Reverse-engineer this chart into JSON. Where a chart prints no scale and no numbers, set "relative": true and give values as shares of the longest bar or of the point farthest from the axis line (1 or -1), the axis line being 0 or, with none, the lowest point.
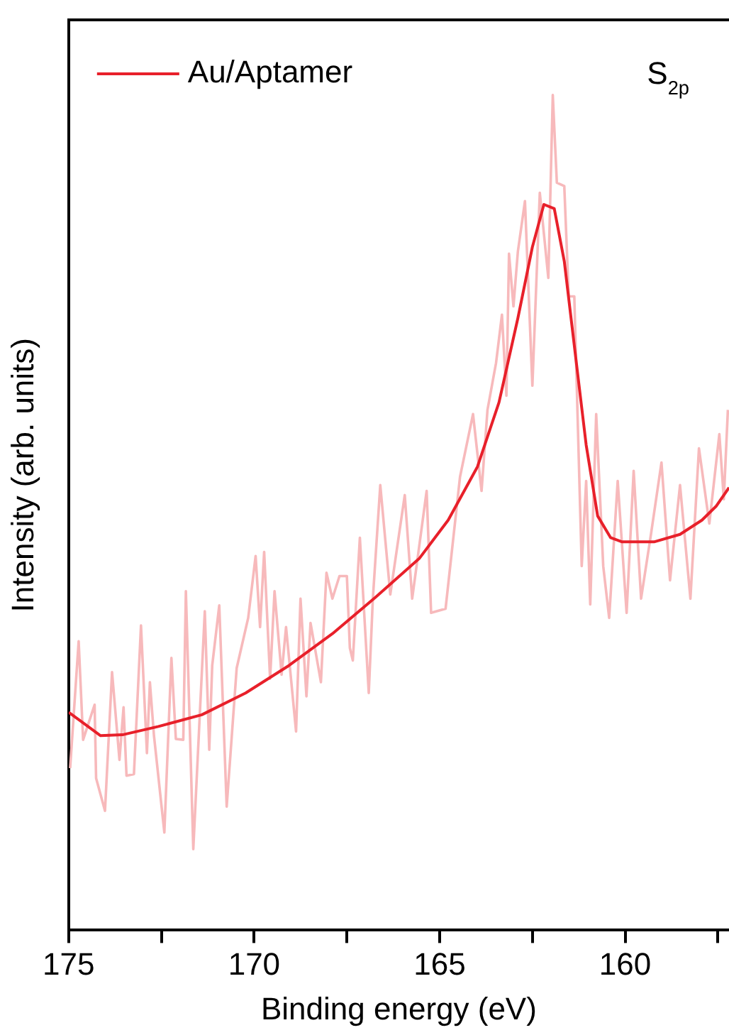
{
  "chart_data": {
    "type": "line",
    "relative": true,
    "xlabel": "Binding energy (eV)",
    "ylabel": "Intensity (arb. units)",
    "annotations": [
      "S$_{2p}$"
    ],
    "legend": "top left",
    "marker": "none",
    "line_style": "solid",
    "grid": false,
    "xlim": [
      175,
      157.2
    ],
    "xticks": [
      175,
      {
        "value": 172.5,
        "label": null
      },
      170,
      {
        "value": 167.5,
        "label": null
      },
      165,
      {
        "value": 162.5,
        "label": null
      },
      160,
      {
        "value": 157.5,
        "label": null
      }
    ],
    "series": [
      {
        "color": "#f7b9bb",
        "x": [
          174.96,
          174.73,
          174.61,
          174.3,
          174.26,
          174.02,
          173.83,
          173.63,
          173.52,
          173.44,
          173.24,
          173.05,
          172.89,
          172.81,
          172.7,
          172.42,
          172.23,
          172.11,
          171.91,
          171.84,
          171.64,
          171.33,
          171.21,
          171.13,
          170.94,
          170.74,
          170.47,
          170.16,
          169.96,
          169.84,
          169.73,
          169.57,
          169.45,
          169.26,
          169.14,
          168.87,
          168.75,
          168.59,
          168.48,
          168.2,
          168.05,
          167.89,
          167.7,
          167.5,
          167.42,
          167.34,
          167.15,
          166.91,
          166.8,
          166.6,
          166.33,
          165.94,
          165.74,
          165.35,
          165.23,
          164.84,
          164.45,
          164.1,
          163.87,
          163.71,
          163.48,
          163.32,
          163.2,
          163.13,
          163.01,
          162.89,
          162.7,
          162.5,
          162.3,
          162.07,
          161.95,
          161.84,
          161.64,
          161.52,
          161.37,
          161.17,
          161.05,
          160.94,
          160.78,
          160.59,
          160.43,
          160.2,
          159.96,
          159.77,
          159.57,
          159.3,
          159.02,
          158.79,
          158.52,
          158.24,
          158.01,
          157.73,
          157.46,
          157.34,
          157.23
        ],
        "values": [
          0.194,
          0.346,
          0.228,
          0.27,
          0.182,
          0.143,
          0.309,
          0.204,
          0.267,
          0.185,
          0.187,
          0.365,
          0.212,
          0.297,
          0.233,
          0.117,
          0.326,
          0.229,
          0.228,
          0.406,
          0.097,
          0.382,
          0.216,
          0.317,
          0.389,
          0.148,
          0.314,
          0.374,
          0.448,
          0.363,
          0.453,
          0.301,
          0.406,
          0.306,
          0.363,
          0.238,
          0.397,
          0.28,
          0.368,
          0.297,
          0.428,
          0.397,
          0.424,
          0.424,
          0.338,
          0.323,
          0.47,
          0.284,
          0.397,
          0.533,
          0.402,
          0.521,
          0.397,
          0.526,
          0.38,
          0.385,
          0.543,
          0.618,
          0.526,
          0.623,
          0.679,
          0.737,
          0.64,
          0.81,
          0.747,
          0.813,
          0.873,
          0.652,
          0.883,
          0.781,
          1.0,
          0.895,
          0.891,
          0.759,
          0.759,
          0.436,
          0.538,
          0.39,
          0.618,
          0.436,
          0.374,
          0.538,
          0.38,
          0.55,
          0.397,
          0.475,
          0.56,
          0.419,
          0.533,
          0.397,
          0.577,
          0.487,
          0.594,
          0.516,
          0.623
        ]
      },
      {
        "name": "Au/Aptamer",
        "color": "#e8202a",
        "x": [
          175,
          174.14,
          173.55,
          172.58,
          171.41,
          170.23,
          169.06,
          167.89,
          166.72,
          165.55,
          164.77,
          163.98,
          163.4,
          162.89,
          162.5,
          162.19,
          161.91,
          161.64,
          161.37,
          161.05,
          160.74,
          160.39,
          160.08,
          159.22,
          158.52,
          157.93,
          157.54,
          157.2
        ],
        "values": [
          0.261,
          0.233,
          0.234,
          0.244,
          0.258,
          0.284,
          0.317,
          0.355,
          0.399,
          0.445,
          0.491,
          0.555,
          0.632,
          0.733,
          0.818,
          0.869,
          0.864,
          0.801,
          0.7,
          0.581,
          0.496,
          0.47,
          0.465,
          0.465,
          0.474,
          0.491,
          0.508,
          0.53
        ]
      }
    ]
  }
}
